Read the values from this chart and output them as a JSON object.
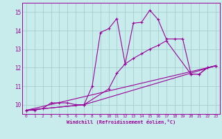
{
  "title": "",
  "xlabel": "Windchill (Refroidissement éolien,°C)",
  "bg_color": "#c8ecec",
  "grid_color": "#a0c8c8",
  "line_color": "#990099",
  "xlim": [
    -0.5,
    23.5
  ],
  "ylim": [
    9.5,
    15.5
  ],
  "yticks": [
    10,
    11,
    12,
    13,
    14,
    15
  ],
  "xticks": [
    0,
    1,
    2,
    3,
    4,
    5,
    6,
    7,
    8,
    9,
    10,
    11,
    12,
    13,
    14,
    15,
    16,
    17,
    18,
    19,
    20,
    21,
    22,
    23
  ],
  "series1_x": [
    0,
    1,
    2,
    3,
    4,
    5,
    6,
    7,
    8,
    9,
    10,
    11,
    12,
    13,
    14,
    15,
    16,
    17,
    18,
    19,
    20,
    21,
    22,
    23
  ],
  "series1_y": [
    9.7,
    9.7,
    9.8,
    10.1,
    10.1,
    10.1,
    10.0,
    10.0,
    11.0,
    13.9,
    14.1,
    14.65,
    12.2,
    14.4,
    14.45,
    15.1,
    14.6,
    13.55,
    13.55,
    13.55,
    11.65,
    11.65,
    12.0,
    12.1
  ],
  "series2_x": [
    0,
    7,
    10,
    11,
    12,
    13,
    14,
    15,
    16,
    17,
    20,
    21,
    22,
    23
  ],
  "series2_y": [
    9.7,
    10.0,
    10.85,
    11.7,
    12.2,
    12.5,
    12.75,
    13.0,
    13.2,
    13.45,
    11.65,
    11.65,
    12.0,
    12.1
  ],
  "series3_x": [
    0,
    7,
    23
  ],
  "series3_y": [
    9.7,
    10.0,
    12.1
  ],
  "series4_x": [
    0,
    23
  ],
  "series4_y": [
    9.7,
    12.1
  ]
}
